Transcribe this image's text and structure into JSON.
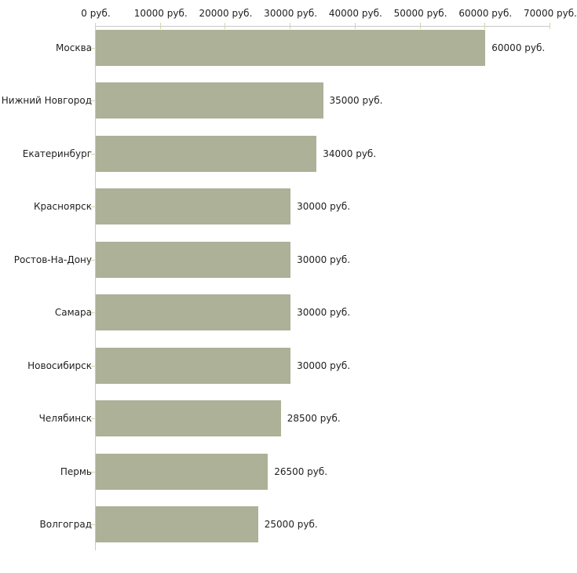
{
  "chart_data": {
    "type": "bar",
    "orientation": "horizontal",
    "title": "",
    "xlabel": "",
    "ylabel": "",
    "unit_suffix": " руб.",
    "categories": [
      "Москва",
      "Нижний Новгород",
      "Екатеринбург",
      "Красноярск",
      "Ростов-На-Дону",
      "Самара",
      "Новосибирск",
      "Челябинск",
      "Пермь",
      "Волгоград"
    ],
    "values": [
      60000,
      35000,
      34000,
      30000,
      30000,
      30000,
      30000,
      28500,
      26500,
      25000
    ],
    "value_labels": [
      "60000 руб.",
      "35000 руб.",
      "34000 руб.",
      "30000 руб.",
      "30000 руб.",
      "30000 руб.",
      "30000 руб.",
      "28500 руб.",
      "26500 руб.",
      "25000 руб."
    ],
    "x_ticks": [
      0,
      10000,
      20000,
      30000,
      40000,
      50000,
      60000,
      70000
    ],
    "x_tick_labels": [
      "0 руб.",
      "10000 руб.",
      "20000 руб.",
      "30000 руб.",
      "40000 руб.",
      "50000 руб.",
      "60000 руб.",
      "70000 руб."
    ],
    "xlim": [
      0,
      70000
    ],
    "grid": false,
    "legend": "none",
    "colors": {
      "bar": "#acb197",
      "axis": "#c9c9c9",
      "tick": "#d8d3a8",
      "text": "#1f1f1f",
      "background": "#ffffff"
    }
  }
}
